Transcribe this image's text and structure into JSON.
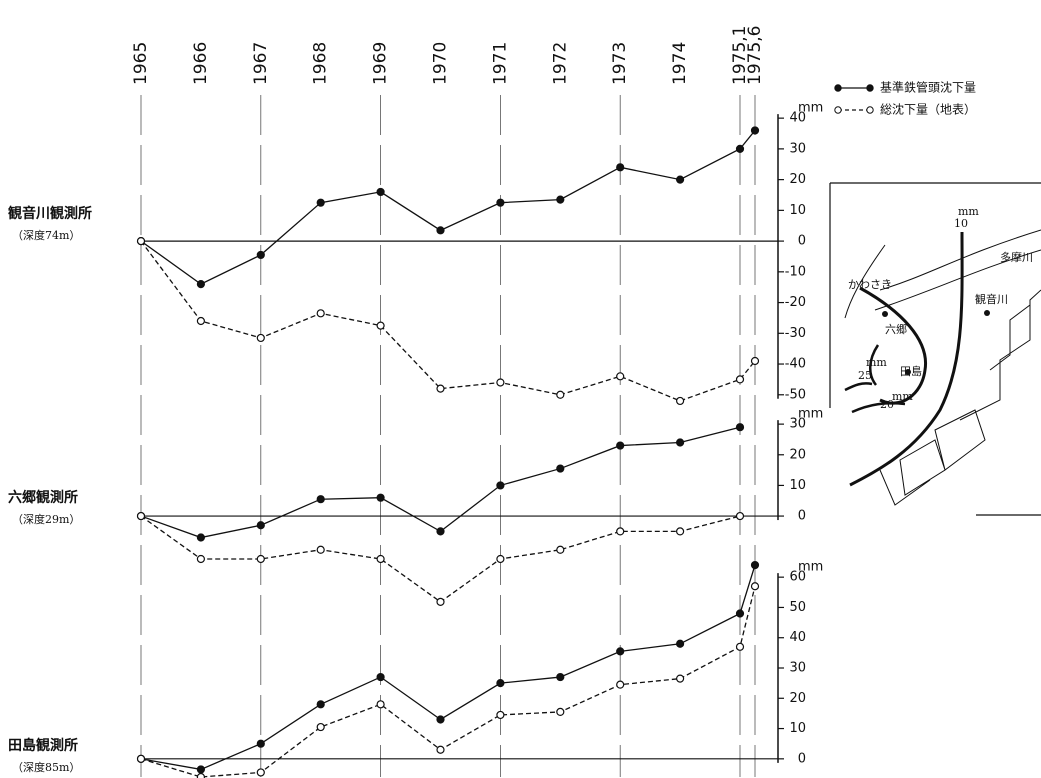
{
  "chart_data": [
    {
      "type": "line",
      "title": "観音川観測所",
      "subtitle": "（深度74m）",
      "ylabel": "mm",
      "categories": [
        "1965",
        "1966",
        "1967",
        "1968",
        "1969",
        "1970",
        "1971",
        "1972",
        "1973",
        "1974",
        "1975,1",
        "1975,6"
      ],
      "ylim": [
        -53,
        42
      ],
      "yticks": [
        40,
        30,
        20,
        10,
        0,
        -10,
        -20,
        -30,
        -40,
        -50
      ],
      "series": [
        {
          "name": "基準鉄管頭沈下量",
          "color": "#111111",
          "line_style": "solid",
          "marker": "filled",
          "values": [
            0,
            -14,
            -4.5,
            12.5,
            16,
            3.5,
            12.5,
            13.5,
            24,
            20,
            30,
            36
          ]
        },
        {
          "name": "総沈下量（地表）",
          "color": "#111111",
          "line_style": "dashed",
          "marker": "open",
          "values": [
            0,
            -26,
            -31.5,
            -23.5,
            -27.5,
            -48,
            -46,
            -50,
            -44,
            -52,
            -45,
            -39
          ]
        }
      ]
    },
    {
      "type": "line",
      "title": "六郷観測所",
      "subtitle": "（深度29m）",
      "ylabel": "mm",
      "ylim": [
        -30,
        32
      ],
      "yticks": [
        30,
        20,
        10,
        0
      ],
      "series": [
        {
          "color": "#111111",
          "line_style": "solid",
          "marker": "filled",
          "values": [
            0,
            -7,
            -3,
            5.5,
            6,
            -5,
            10,
            15.5,
            23,
            24,
            29,
            null
          ]
        },
        {
          "color": "#111111",
          "line_style": "dashed",
          "marker": "open",
          "values": [
            0,
            -14,
            -14,
            -11,
            -14,
            -28,
            -14,
            -11,
            -5,
            -5,
            0,
            null
          ]
        }
      ]
    },
    {
      "type": "line",
      "title": "田島観測所",
      "subtitle": "（深度85m）",
      "ylabel": "mm",
      "ylim": [
        -6,
        66
      ],
      "yticks": [
        60,
        50,
        40,
        30,
        20,
        10,
        0
      ],
      "series": [
        {
          "color": "#111111",
          "line_style": "solid",
          "marker": "filled",
          "values": [
            0,
            -3.5,
            5,
            18,
            27,
            13,
            25,
            27,
            35.5,
            38,
            48,
            64
          ]
        },
        {
          "color": "#111111",
          "line_style": "dashed",
          "marker": "open",
          "values": [
            0,
            -6,
            -4.5,
            10.5,
            18,
            3,
            14.5,
            15.5,
            24.5,
            26.5,
            37,
            57
          ]
        }
      ]
    }
  ],
  "map": {
    "labels": [
      "mm",
      "10",
      "多摩川",
      "かわさき",
      "六郷",
      "観音川",
      "田島",
      "mm",
      "25",
      "20",
      "mm"
    ]
  }
}
